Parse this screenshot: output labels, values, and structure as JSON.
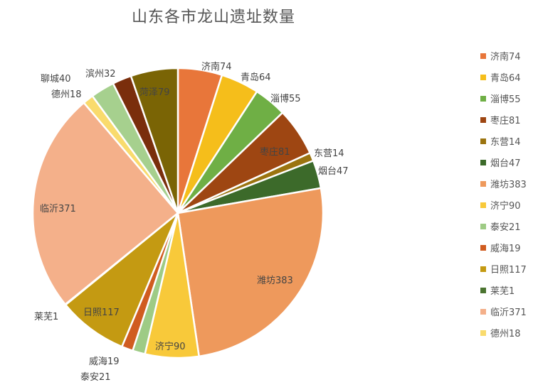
{
  "chart_data": {
    "type": "pie",
    "title": "山东各市龙山遗址数量",
    "legend_position": "right",
    "slices": [
      {
        "name": "济南",
        "value": 74,
        "label": "济南74",
        "color": "#E8763A"
      },
      {
        "name": "青岛",
        "value": 64,
        "label": "青岛64",
        "color": "#F5BE1B"
      },
      {
        "name": "淄博",
        "value": 55,
        "label": "淄博55",
        "color": "#6FAF45"
      },
      {
        "name": "枣庄",
        "value": 81,
        "label": "枣庄81",
        "color": "#9E4612"
      },
      {
        "name": "东营",
        "value": 14,
        "label": "东营14",
        "color": "#9B7410"
      },
      {
        "name": "烟台",
        "value": 47,
        "label": "烟台47",
        "color": "#3C6A2A"
      },
      {
        "name": "潍坊",
        "value": 383,
        "label": "潍坊383",
        "color": "#EE995C"
      },
      {
        "name": "济宁",
        "value": 90,
        "label": "济宁90",
        "color": "#F8C93A"
      },
      {
        "name": "泰安",
        "value": 21,
        "label": "泰安21",
        "color": "#9ECB85"
      },
      {
        "name": "威海",
        "value": 19,
        "label": "威海19",
        "color": "#D05C20"
      },
      {
        "name": "日照",
        "value": 117,
        "label": "日照117",
        "color": "#C49A12"
      },
      {
        "name": "莱芜",
        "value": 1,
        "label": "莱芜1",
        "color": "#4B7430"
      },
      {
        "name": "临沂",
        "value": 371,
        "label": "临沂371",
        "color": "#F4B08A"
      },
      {
        "name": "德州",
        "value": 18,
        "label": "德州18",
        "color": "#F9DB6D"
      },
      {
        "name": "聊城",
        "value": 40,
        "label": "聊城40",
        "color": "#A6D08E"
      },
      {
        "name": "滨州",
        "value": 32,
        "label": "滨州32",
        "color": "#7A2E0C"
      },
      {
        "name": "菏泽",
        "value": 79,
        "label": "菏泽79",
        "color": "#7A6405"
      }
    ],
    "legend_visible": [
      "济南74",
      "青岛64",
      "淄博55",
      "枣庄81",
      "东营14",
      "烟台47",
      "潍坊383",
      "济宁90",
      "泰安21",
      "威海19",
      "日照117",
      "莱芜1",
      "临沂371",
      "德州18"
    ]
  }
}
